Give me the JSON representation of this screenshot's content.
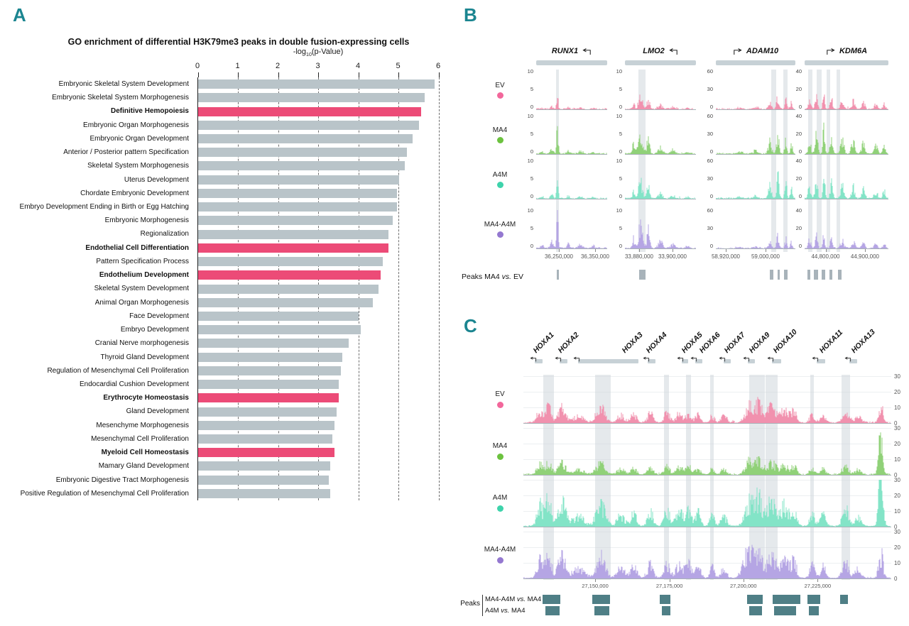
{
  "panel_a": {
    "label": "A",
    "axis_title": {
      "prefix": "-log",
      "sub": "10",
      "suffix": "(p-Value)"
    }
  },
  "tracks": [
    {
      "label": "EV",
      "dot": "#f2679b",
      "signal": "#f191ae"
    },
    {
      "label": "MA4",
      "dot": "#6cc23f",
      "signal": "#90d178"
    },
    {
      "label": "A4M",
      "dot": "#3ed3ab",
      "signal": "#83e4c7"
    },
    {
      "label": "MA4-A4M",
      "dot": "#9478d0",
      "signal": "#b5a5e4"
    }
  ],
  "panel_b": {
    "label": "B",
    "peaks_row": {
      "prefix": "Peaks MA4 ",
      "vs": "vs.",
      "suffix": " EV"
    },
    "peak_box_color": "#a8b3ba",
    "gene_body_color": "#c7d1d6",
    "genes": [
      {
        "coord_fracs": [
          0.32,
          0.83
        ],
        "amps": [
          0.42,
          0.85,
          0.62,
          1.0
        ],
        "peaks": [
          [
            0.3,
            0.012,
            1.0
          ],
          [
            0.22,
            0.02,
            0.22
          ],
          [
            0.45,
            0.02,
            0.15
          ],
          [
            0.62,
            0.03,
            0.12
          ],
          [
            0.8,
            0.02,
            0.1
          ],
          [
            0.08,
            0.02,
            0.1
          ]
        ],
        "bands": [
          [
            0.3,
            0.045
          ]
        ],
        "boxes": [
          [
            0.3,
            0.03
          ]
        ]
      },
      {
        "coord_fracs": [
          0.2,
          0.67
        ],
        "amps": [
          0.55,
          0.9,
          0.7,
          0.95
        ],
        "peaks": [
          [
            0.22,
            0.028,
            0.85
          ],
          [
            0.33,
            0.02,
            0.65
          ],
          [
            0.12,
            0.018,
            0.35
          ],
          [
            0.5,
            0.03,
            0.25
          ],
          [
            0.68,
            0.03,
            0.15
          ],
          [
            0.88,
            0.02,
            0.1
          ]
        ],
        "bands": [
          [
            0.24,
            0.1
          ]
        ],
        "boxes": [
          [
            0.24,
            0.09
          ]
        ]
      },
      {
        "coord_fracs": [
          0.125,
          0.625
        ],
        "amps": [
          0.5,
          0.85,
          0.85,
          0.45
        ],
        "peaks": [
          [
            0.78,
            0.015,
            0.95
          ],
          [
            0.88,
            0.012,
            0.75
          ],
          [
            0.68,
            0.02,
            0.5
          ],
          [
            0.95,
            0.012,
            0.45
          ],
          [
            0.5,
            0.03,
            0.12
          ],
          [
            0.3,
            0.03,
            0.08
          ]
        ],
        "bands": [
          [
            0.73,
            0.06
          ],
          [
            0.875,
            0.05
          ]
        ],
        "boxes": [
          [
            0.7,
            0.04
          ],
          [
            0.79,
            0.035
          ],
          [
            0.88,
            0.04
          ]
        ]
      },
      {
        "coord_fracs": [
          0.25,
          0.72
        ],
        "amps": [
          0.6,
          0.95,
          0.9,
          0.55
        ],
        "peaks": [
          [
            0.06,
            0.015,
            0.55
          ],
          [
            0.14,
            0.015,
            0.8
          ],
          [
            0.23,
            0.012,
            0.95
          ],
          [
            0.32,
            0.015,
            0.7
          ],
          [
            0.45,
            0.02,
            0.5
          ],
          [
            0.58,
            0.02,
            0.45
          ],
          [
            0.7,
            0.02,
            0.38
          ],
          [
            0.85,
            0.02,
            0.3
          ],
          [
            0.95,
            0.015,
            0.32
          ]
        ],
        "bands": [
          [
            0.07,
            0.05
          ],
          [
            0.175,
            0.055
          ],
          [
            0.285,
            0.045
          ],
          [
            0.4,
            0.04
          ]
        ],
        "boxes": [
          [
            0.05,
            0.04
          ],
          [
            0.135,
            0.045
          ],
          [
            0.225,
            0.04
          ],
          [
            0.315,
            0.035
          ],
          [
            0.42,
            0.04
          ]
        ]
      }
    ]
  },
  "panel_c": {
    "label": "C",
    "peaks_label": "Peaks",
    "peak_box_color": "#4f7f86",
    "gene_body_color": "#c7d1d6",
    "coord_fracs": [
      0.195,
      0.397,
      0.598,
      0.8
    ],
    "gene_marks": [
      {
        "x": 0.038,
        "body": [
          0.03,
          0.022
        ]
      },
      {
        "x": 0.106,
        "body": [
          0.098,
          0.022
        ]
      },
      {
        "x": 0.279,
        "body": [
          0.148,
          0.165
        ]
      },
      {
        "x": 0.346,
        "body": [
          0.338,
          0.022
        ]
      },
      {
        "x": 0.442,
        "body": [
          0.43,
          0.018
        ]
      },
      {
        "x": 0.49,
        "body": [
          0.468,
          0.018
        ]
      },
      {
        "x": 0.558,
        "body": [
          0.545,
          0.018
        ]
      },
      {
        "x": 0.625,
        "body": [
          0.61,
          0.02
        ]
      },
      {
        "x": 0.692,
        "body": [
          0.676,
          0.025
        ]
      },
      {
        "x": 0.817,
        "body": [
          0.798,
          0.022
        ]
      },
      {
        "x": 0.904,
        "body": [
          0.886,
          0.022
        ]
      }
    ],
    "shared_peaks": [
      [
        0.045,
        0.008,
        0.7
      ],
      [
        0.068,
        0.008,
        0.9
      ],
      [
        0.105,
        0.01,
        0.85
      ],
      [
        0.15,
        0.015,
        0.35
      ],
      [
        0.21,
        0.012,
        0.8
      ],
      [
        0.265,
        0.01,
        0.4
      ],
      [
        0.3,
        0.008,
        0.45
      ],
      [
        0.345,
        0.008,
        0.5
      ],
      [
        0.39,
        0.008,
        0.55
      ],
      [
        0.425,
        0.01,
        0.5
      ],
      [
        0.45,
        0.007,
        0.55
      ],
      [
        0.475,
        0.007,
        0.45
      ],
      [
        0.513,
        0.006,
        0.4
      ],
      [
        0.545,
        0.008,
        0.35
      ],
      [
        0.615,
        0.012,
        0.85
      ],
      [
        0.64,
        0.01,
        0.9
      ],
      [
        0.675,
        0.012,
        0.85
      ],
      [
        0.71,
        0.01,
        0.7
      ],
      [
        0.735,
        0.008,
        0.6
      ],
      [
        0.785,
        0.007,
        0.45
      ],
      [
        0.815,
        0.008,
        0.4
      ],
      [
        0.876,
        0.009,
        0.55
      ],
      [
        0.91,
        0.008,
        0.35
      ],
      [
        0.972,
        0.006,
        0.9
      ]
    ],
    "amps": [
      0.55,
      0.42,
      0.85,
      0.8
    ],
    "extras": [
      [],
      [
        [
          0.972,
          0.005,
          2.2
        ]
      ],
      [
        [
          0.972,
          0.005,
          1.3
        ]
      ],
      [
        [
          0.6,
          0.01,
          0.3
        ]
      ]
    ],
    "bands": [
      [
        0.068,
        0.029
      ],
      [
        0.216,
        0.042
      ],
      [
        0.389,
        0.014
      ],
      [
        0.449,
        0.015
      ],
      [
        0.513,
        0.01
      ],
      [
        0.635,
        0.044
      ],
      [
        0.675,
        0.033
      ],
      [
        0.785,
        0.01
      ],
      [
        0.876,
        0.023
      ]
    ],
    "peak_rows": [
      {
        "parts": {
          "a": "MA4-A4M ",
          "vs": "vs.",
          "b": " MA4"
        },
        "boxes": [
          [
            0.077,
            0.048
          ],
          [
            0.211,
            0.048
          ],
          [
            0.386,
            0.029
          ],
          [
            0.63,
            0.042
          ],
          [
            0.715,
            0.075
          ],
          [
            0.789,
            0.034
          ],
          [
            0.872,
            0.021
          ]
        ]
      },
      {
        "parts": {
          "a": "A4M ",
          "vs": "vs.",
          "b": " MA4"
        },
        "boxes": [
          [
            0.079,
            0.04
          ],
          [
            0.213,
            0.04
          ],
          [
            0.388,
            0.022
          ],
          [
            0.632,
            0.035
          ],
          [
            0.712,
            0.06
          ],
          [
            0.79,
            0.028
          ]
        ]
      }
    ]
  },
  "chart_data": [
    {
      "type": "bar",
      "orientation": "horizontal",
      "title": "GO enrichment of differential H3K79me3 peaks in double fusion-expressing cells",
      "xlabel": "-log10(p-Value)",
      "xlim": [
        0,
        6
      ],
      "xticks": [
        0,
        1,
        2,
        3,
        4,
        5,
        6
      ],
      "grid": "dashed-vertical",
      "bar_color": "#b9c4c9",
      "highlight_color": "#ec4b77",
      "categories": [
        "Embryonic Skeletal System Development",
        "Embryonic Skeletal System Morphogenesis",
        "Definitive Hemopoiesis",
        "Embryonic Organ Morphogenesis",
        "Embryonic Organ Development",
        "Anterior / Posterior pattern Specification",
        "Skeletal System Morphogenesis",
        "Uterus Development",
        "Chordate Embryonic Development",
        "Embryo Development Ending in Birth or Egg Hatching",
        "Embryonic Morphogenesis",
        "Regionalization",
        "Endothelial Cell Differentiation",
        "Pattern Specification Process",
        "Endothelium Development",
        "Skeletal System Development",
        "Animal Organ Morphogenesis",
        "Face Development",
        "Embryo Development",
        "Cranial Nerve morphogenesis",
        "Thyroid Gland Development",
        "Regulation of Mesenchymal Cell Proliferation",
        "Endocardial Cushion Development",
        "Erythrocyte Homeostasis",
        "Gland Development",
        "Mesenchyme Morphogenesis",
        "Mesenchymal Cell Proliferation",
        "Myeloid Cell Homeostasis",
        "Mamary Gland Development",
        "Embryonic Digestive Tract Morphogenesis",
        "Positive Regulation of Mesenchymal Cell Proliferation"
      ],
      "values": [
        5.9,
        5.65,
        5.55,
        5.5,
        5.35,
        5.2,
        5.15,
        5.0,
        4.95,
        4.95,
        4.85,
        4.75,
        4.75,
        4.6,
        4.55,
        4.5,
        4.35,
        4.0,
        4.05,
        3.75,
        3.6,
        3.55,
        3.5,
        3.5,
        3.45,
        3.4,
        3.35,
        3.4,
        3.3,
        3.25,
        3.3
      ],
      "highlighted": [
        "Definitive Hemopoiesis",
        "Endothelial Cell Differentiation",
        "Endothelium Development",
        "Erythrocyte Homeostasis",
        "Myeloid Cell Homeostasis"
      ]
    },
    {
      "type": "area",
      "subtype": "genome-browser-tracks",
      "panel": "B",
      "tracks": [
        "EV",
        "MA4",
        "A4M",
        "MA4-A4M"
      ],
      "track_colors": [
        "#f191ae",
        "#90d178",
        "#83e4c7",
        "#b5a5e4"
      ],
      "genes": [
        {
          "name": "RUNX1",
          "strand": "-",
          "yticks": [
            10,
            5,
            0
          ],
          "x_coords": [
            "36,250,000",
            "36,350,000"
          ]
        },
        {
          "name": "LMO2",
          "strand": "-",
          "yticks": [
            10,
            5,
            0
          ],
          "x_coords": [
            "33,880,000",
            "33,900,000"
          ]
        },
        {
          "name": "ADAM10",
          "strand": "+",
          "yticks": [
            60,
            30,
            0
          ],
          "x_coords": [
            "58,920,000",
            "59,000,000"
          ]
        },
        {
          "name": "KDM6A",
          "strand": "+",
          "yticks": [
            40,
            20,
            0
          ],
          "x_coords": [
            "44,800,000",
            "44,900,000"
          ]
        }
      ],
      "peaks_track": "Peaks MA4 vs. EV"
    },
    {
      "type": "area",
      "subtype": "genome-browser-tracks",
      "panel": "C",
      "locus": "HOXA cluster",
      "genes": [
        "HOXA1",
        "HOXA2",
        "HOXA3",
        "HOXA4",
        "HOXA5",
        "HOXA6",
        "HOXA7",
        "HOXA9",
        "HOXA10",
        "HOXA11",
        "HOXA13"
      ],
      "tracks": [
        "EV",
        "MA4",
        "A4M",
        "MA4-A4M"
      ],
      "yticks": [
        30,
        20,
        10,
        0
      ],
      "x_coords": [
        "27,150,000",
        "27,175,000",
        "27,200,000",
        "27,225,000"
      ],
      "peaks_tracks": [
        "MA4-A4M vs. MA4",
        "A4M vs. MA4"
      ]
    }
  ]
}
